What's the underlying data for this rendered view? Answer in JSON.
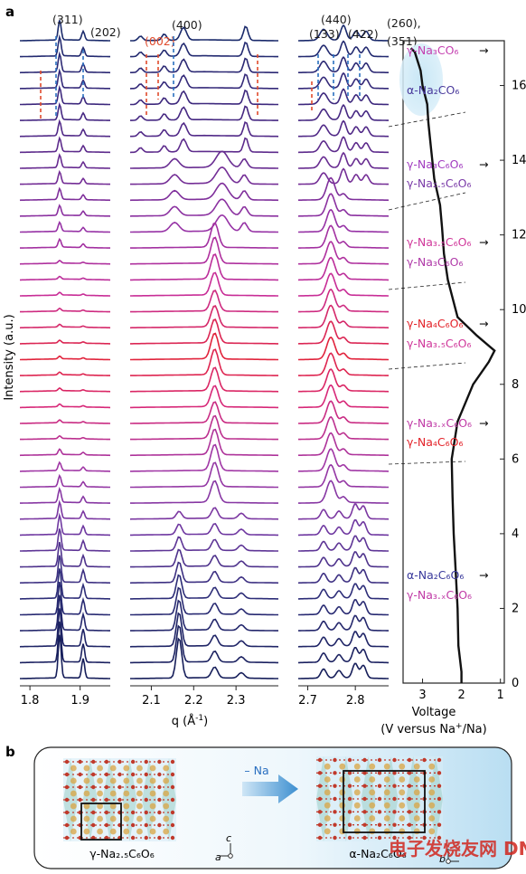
{
  "panel_a": {
    "letter": "a",
    "ylabel": "Intensity (a.u.)",
    "xlabel": "q (Å",
    "xlabel_sup": "-1",
    "xlabel_close": ")",
    "q_panels": [
      {
        "ticks": [
          "1.8",
          "1.9"
        ],
        "range": [
          1.78,
          1.96
        ],
        "peaks": [
          {
            "label": "(311)",
            "q": 1.855
          },
          {
            "label": "(202)",
            "q": 1.903
          }
        ]
      },
      {
        "ticks": [
          "2.1",
          "2.2",
          "2.3"
        ],
        "range": [
          2.05,
          2.4
        ],
        "peaks": [
          {
            "label": "(002)",
            "q": 2.105,
            "color": "#e04b2c"
          },
          {
            "label": "(400)",
            "q": 2.16
          }
        ]
      },
      {
        "ticks": [
          "2.7",
          "2.8"
        ],
        "range": [
          2.68,
          2.87
        ],
        "peaks": [
          {
            "label": "(440)",
            "q": 2.745
          },
          {
            "label": "(133)",
            "q": 2.735
          },
          {
            "label": "(422)",
            "q": 2.77
          },
          {
            "label": "(260),",
            "q": 2.81
          },
          {
            "label": "(351)",
            "q": 2.815
          }
        ]
      }
    ],
    "voltage_axis": {
      "label": "Voltage",
      "unit_label": "(V versus Na",
      "unit_sup": "+",
      "unit_close": "/Na)",
      "ticks": [
        "3",
        "2",
        "1"
      ],
      "yticks": [
        "0",
        "2",
        "4",
        "6",
        "8",
        "10",
        "12",
        "14",
        "16"
      ]
    },
    "phases": [
      {
        "label": "γ-Na₃CO₆",
        "color": "#c43fb0",
        "arrow": true
      },
      {
        "label": "α-Na₂CO₆",
        "color": "#4a3a9c",
        "arrow": false
      },
      {
        "label": "γ-Na₃C₆O₆",
        "color": "#a23cc0",
        "arrow": true
      },
      {
        "label": "γ-Na₂.₅C₆O₆",
        "color": "#7a3aa8",
        "arrow": false
      },
      {
        "label": "γ-Na₃.₅C₆O₆",
        "color": "#d0379a",
        "arrow": true
      },
      {
        "label": "γ-Na₃C₆O₆",
        "color": "#b03aa8",
        "arrow": false
      },
      {
        "label": "γ-Na₄C₆O₆",
        "color": "#e3232a",
        "arrow": true
      },
      {
        "label": "γ-Na₃.₅C₆O₆",
        "color": "#d0379a",
        "arrow": false
      },
      {
        "label": "γ-Na₃.ₓC₆O₆",
        "color": "#c03aa6",
        "arrow": true
      },
      {
        "label": "γ-Na₄C₆O₆",
        "color": "#e3232a",
        "arrow": false
      },
      {
        "label": "α-Na₂C₆O₆",
        "color": "#3a3a9c",
        "arrow": true
      },
      {
        "label": "γ-Na₃.ₓC₆O₆",
        "color": "#c03aa6",
        "arrow": false
      }
    ]
  },
  "panel_b": {
    "letter": "b",
    "left_label": "γ-Na₂.₅C₆O₆",
    "right_label": "α-Na₂C₆O₆",
    "arrow_label": "– Na",
    "axis_a": "a",
    "axis_c": "c",
    "axis_b": "b"
  },
  "watermark": "电子发烧友网 DNet",
  "colors": {
    "navy": "#1a2a6b",
    "purple": "#8a3aaa",
    "magenta": "#d0309a",
    "red": "#e3232a",
    "blue_dash": "#2a6fc0",
    "red_dash": "#e04b2c",
    "atom_red": "#c0392b",
    "atom_gold": "#d9a441"
  }
}
